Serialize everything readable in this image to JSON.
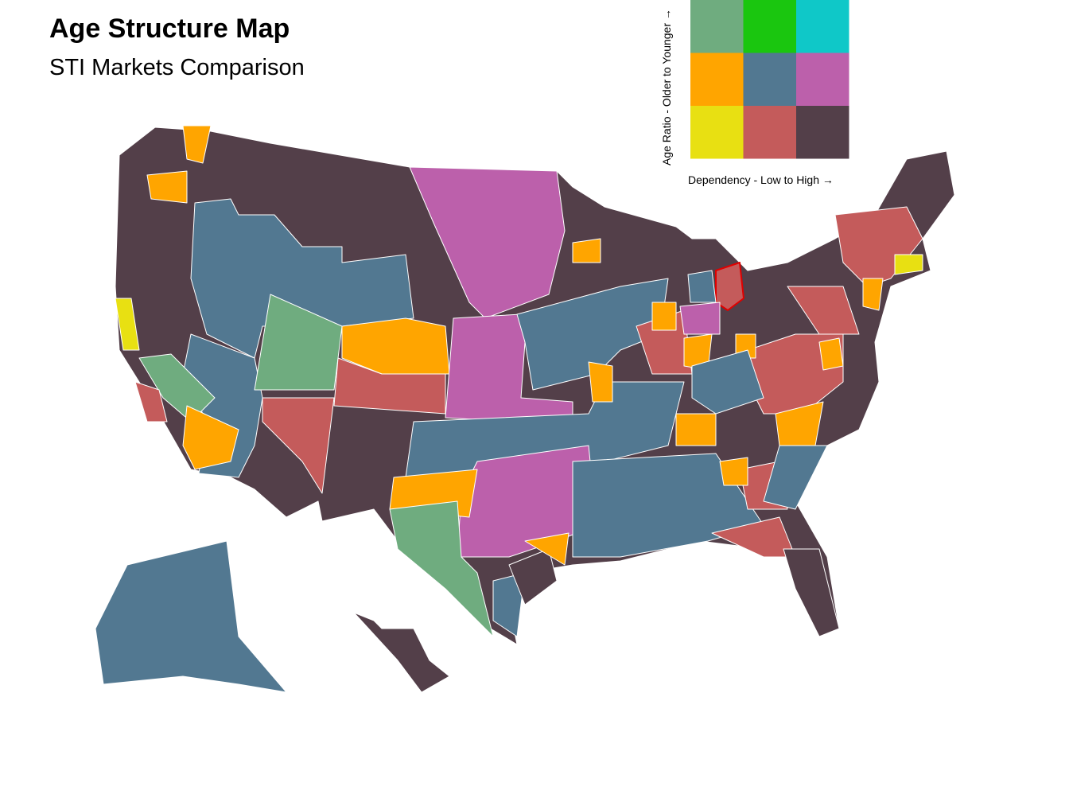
{
  "header": {
    "title": "Age Structure Map",
    "subtitle": "STI Markets Comparison"
  },
  "legend": {
    "y_label": "Age Ratio - Older to Younger →",
    "x_label": "Dependency - Low to High →",
    "colors": [
      [
        "#6fac7f",
        "#1ac60f",
        "#0fc8c8"
      ],
      [
        "#ffa500",
        "#527891",
        "#bc60ab"
      ],
      [
        "#e8e012",
        "#c45b5b",
        "#533f49"
      ]
    ]
  }
}
